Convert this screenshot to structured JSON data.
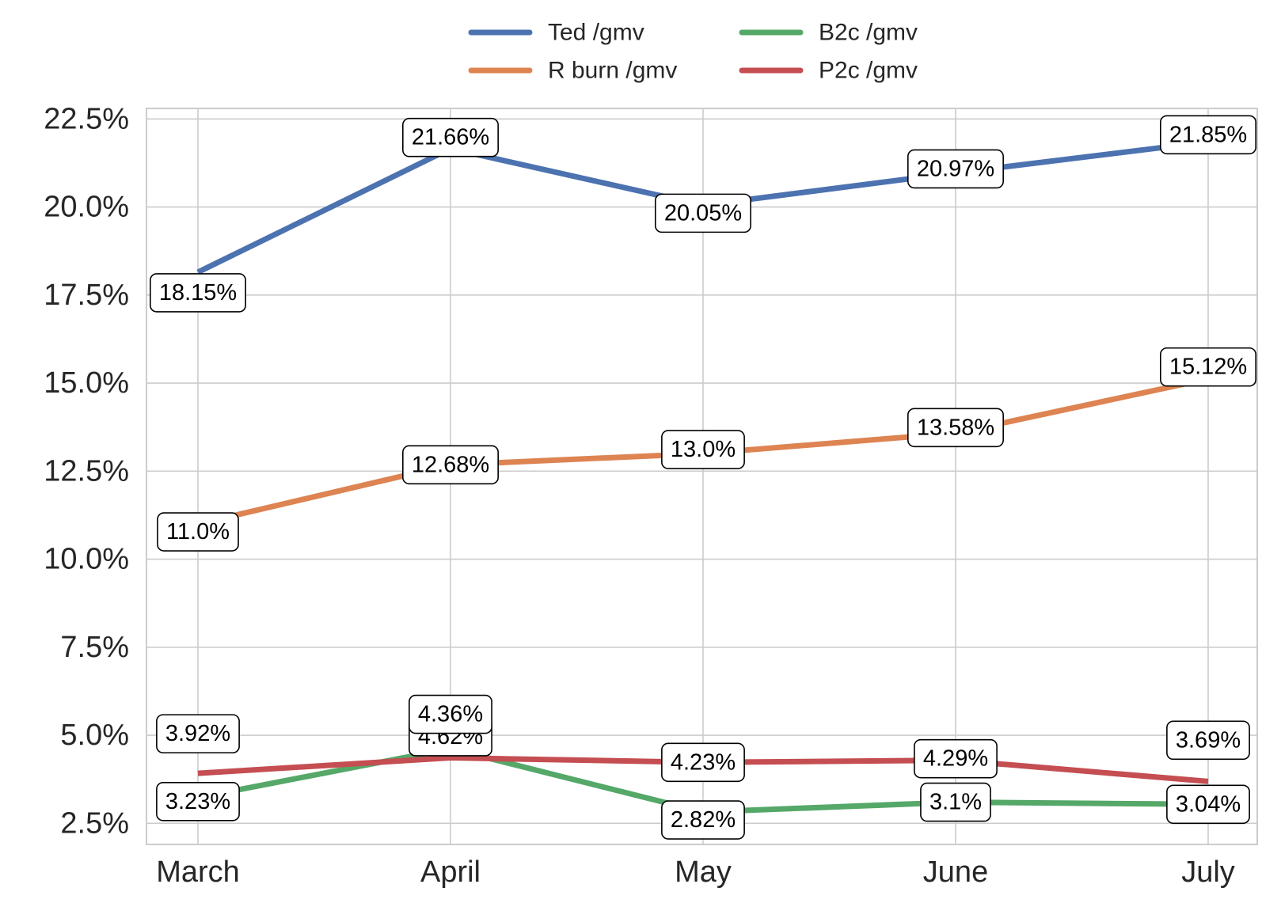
{
  "chart_data": {
    "type": "line",
    "title": "",
    "xlabel": "",
    "ylabel": "",
    "categories": [
      "March",
      "April",
      "May",
      "June",
      "July"
    ],
    "ylim": [
      1.9,
      22.8
    ],
    "yticks": [
      2.5,
      5.0,
      7.5,
      10.0,
      12.5,
      15.0,
      17.5,
      20.0,
      22.5
    ],
    "ytick_labels": [
      "2.5%",
      "5.0%",
      "7.5%",
      "10.0%",
      "12.5%",
      "15.0%",
      "17.5%",
      "20.0%",
      "22.5%"
    ],
    "grid": true,
    "legend_position": "top-center",
    "series": [
      {
        "name": "Ted /gmv",
        "color": "#4c72b0",
        "values": [
          18.15,
          21.66,
          20.05,
          20.97,
          21.85
        ],
        "labels": [
          "18.15%",
          "21.66%",
          "20.05%",
          "20.97%",
          "21.85%"
        ]
      },
      {
        "name": "R burn /gmv",
        "color": "#dd8452",
        "values": [
          11.0,
          12.68,
          13.0,
          13.58,
          15.12
        ],
        "labels": [
          "11.0%",
          "12.68%",
          "13.0%",
          "13.58%",
          "15.12%"
        ]
      },
      {
        "name": "B2c /gmv",
        "color": "#55a868",
        "values": [
          3.23,
          4.62,
          2.82,
          3.1,
          3.04
        ],
        "labels": [
          "3.23%",
          "4.62%",
          "2.82%",
          "3.1%",
          "3.04%"
        ]
      },
      {
        "name": "P2c /gmv",
        "color": "#c44e52",
        "values": [
          3.92,
          4.36,
          4.23,
          4.29,
          3.69
        ],
        "labels": [
          "3.92%",
          "4.36%",
          "4.23%",
          "4.29%",
          "3.69%"
        ]
      }
    ]
  }
}
